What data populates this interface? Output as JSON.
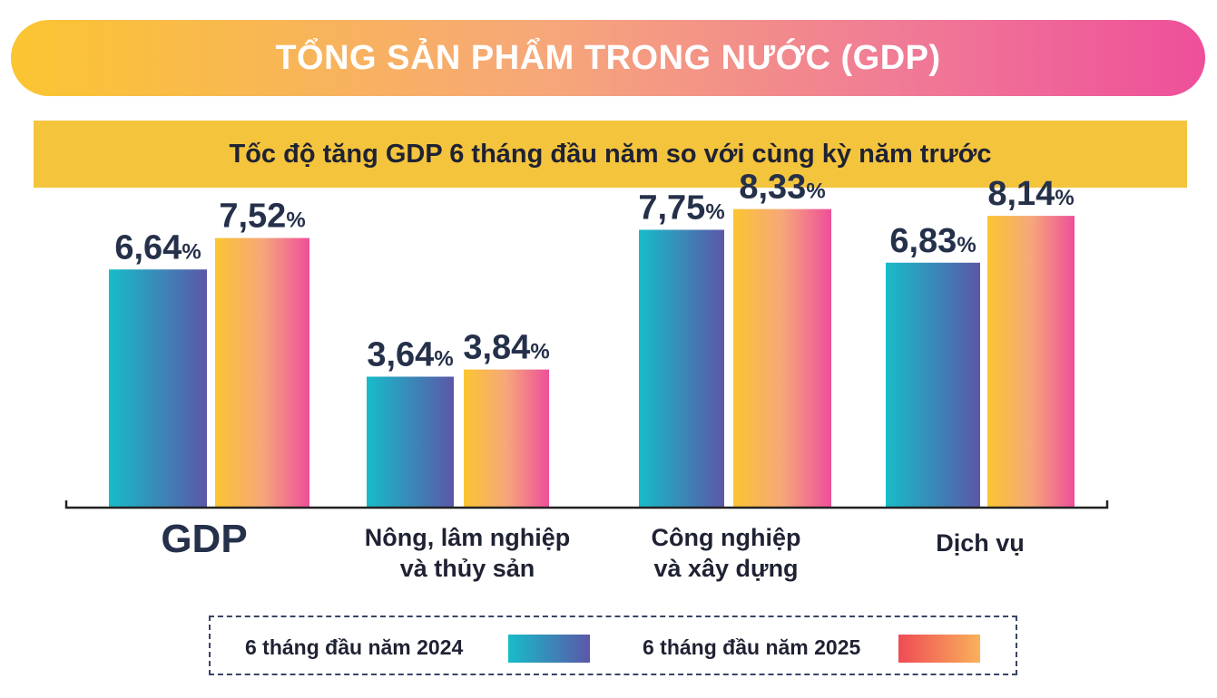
{
  "header": {
    "title": "TỔNG SẢN PHẨM TRONG NƯỚC (GDP)"
  },
  "chart_data": {
    "type": "bar",
    "title": "Tốc độ tăng GDP 6 tháng đầu năm so với cùng kỳ năm trước",
    "categories": [
      "GDP",
      "Nông, lâm nghiệp và thủy sản",
      "Công nghiệp và xây dựng",
      "Dịch vụ"
    ],
    "series": [
      {
        "name": "6 tháng đầu năm 2024",
        "values": [
          6.64,
          3.64,
          7.75,
          6.83
        ],
        "labels": [
          "6,64",
          "3,64",
          "7,75",
          "6,83"
        ]
      },
      {
        "name": "6 tháng đầu năm 2025",
        "values": [
          7.52,
          3.84,
          8.33,
          8.14
        ],
        "labels": [
          "7,52",
          "3,84",
          "8,33",
          "8,14"
        ]
      }
    ],
    "unit_suffix": "%",
    "ylim": [
      0,
      8.6
    ],
    "xlabel": "",
    "ylabel": "",
    "grid": false,
    "legend": "bottom"
  },
  "category_lines": [
    [
      "GDP"
    ],
    [
      "Nông, lâm nghiệp",
      "và thủy sản"
    ],
    [
      "Công nghiệp",
      "và xây dựng"
    ],
    [
      "Dịch vụ"
    ]
  ],
  "colors": {
    "series1_start": "#17bcc9",
    "series1_end": "#5b57a8",
    "series2_start": "#fbc531",
    "series2_mid": "#f6a77a",
    "series2_end": "#ee4f9a",
    "legend2_start": "#ef4b55",
    "legend2_end": "#f9b15a",
    "label": "#25304a",
    "axis": "#222222"
  },
  "legend": {
    "series1_label": "6 tháng đầu năm 2024",
    "series2_label": "6 tháng đầu năm 2025"
  }
}
